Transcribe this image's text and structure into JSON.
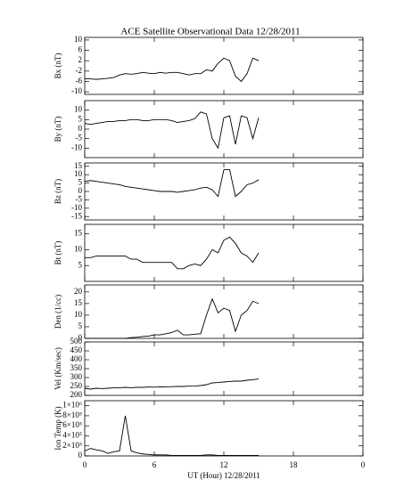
{
  "title": "ACE Satellite Observational Data   12/28/2011",
  "chart_data": [
    {
      "type": "line",
      "ylabel": "Bx (nT)",
      "xlim": [
        0,
        24
      ],
      "ylim": [
        -11,
        11
      ],
      "yticks": [
        -10,
        -6,
        -2,
        2,
        6,
        10
      ],
      "x": [
        0,
        0.5,
        1,
        1.5,
        2,
        2.5,
        3,
        3.5,
        4,
        4.5,
        5,
        5.5,
        6,
        6.5,
        7,
        7.5,
        8,
        8.5,
        9,
        9.5,
        10,
        10.5,
        11,
        11.5,
        12,
        12.5,
        13,
        13.5,
        14,
        14.5,
        15
      ],
      "series": [
        {
          "color": "#000000",
          "values": [
            -5,
            -5,
            -5.2,
            -5,
            -4.8,
            -4.5,
            -3.5,
            -3,
            -3.2,
            -3,
            -2.5,
            -2.8,
            -3,
            -2.5,
            -2.8,
            -2.5,
            -2.5,
            -3,
            -3.5,
            -3,
            -3,
            -1.5,
            -2,
            1,
            3,
            2,
            -4,
            -6,
            -3,
            3,
            2
          ]
        }
      ]
    },
    {
      "type": "line",
      "ylabel": "By (nT)",
      "xlim": [
        0,
        24
      ],
      "ylim": [
        -15,
        15
      ],
      "yticks": [
        -10,
        -5,
        0,
        5,
        10
      ],
      "x": [
        0,
        0.5,
        1,
        1.5,
        2,
        2.5,
        3,
        3.5,
        4,
        4.5,
        5,
        5.5,
        6,
        6.5,
        7,
        7.5,
        8,
        8.5,
        9,
        9.5,
        10,
        10.5,
        11,
        11.5,
        12,
        12.5,
        13,
        13.5,
        14,
        14.5,
        15
      ],
      "series": [
        {
          "color": "#000000",
          "values": [
            3,
            2.5,
            3,
            3.5,
            4,
            4,
            4.5,
            4.5,
            5,
            5,
            4.5,
            4.5,
            5,
            5,
            5,
            4.5,
            3.5,
            4,
            4.5,
            5.5,
            9,
            8,
            -5,
            -10,
            6,
            7,
            -8,
            7,
            6,
            -5,
            6
          ]
        }
      ]
    },
    {
      "type": "line",
      "ylabel": "Bz (nT)",
      "xlim": [
        0,
        24
      ],
      "ylim": [
        -17,
        17
      ],
      "yticks": [
        -15,
        -10,
        -5,
        0,
        5,
        10,
        15
      ],
      "x": [
        0,
        0.5,
        1,
        1.5,
        2,
        2.5,
        3,
        3.5,
        4,
        4.5,
        5,
        5.5,
        6,
        6.5,
        7,
        7.5,
        8,
        8.5,
        9,
        9.5,
        10,
        10.5,
        11,
        11.5,
        12,
        12.5,
        13,
        13.5,
        14,
        14.5,
        15
      ],
      "series": [
        {
          "color": "#000000",
          "values": [
            6,
            6.5,
            6,
            5.5,
            5,
            4.5,
            4,
            3,
            2.5,
            2,
            1.5,
            1,
            0.5,
            0,
            0,
            0,
            -0.5,
            0,
            0.5,
            1,
            2,
            2.5,
            1,
            -3,
            13,
            13,
            -3,
            0,
            4,
            5,
            7
          ]
        }
      ]
    },
    {
      "type": "line",
      "ylabel": "Bt (nT)",
      "xlim": [
        0,
        24
      ],
      "ylim": [
        0,
        18
      ],
      "yticks": [
        5,
        10,
        15
      ],
      "x": [
        0,
        0.5,
        1,
        1.5,
        2,
        2.5,
        3,
        3.5,
        4,
        4.5,
        5,
        5.5,
        6,
        6.5,
        7,
        7.5,
        8,
        8.5,
        9,
        9.5,
        10,
        10.5,
        11,
        11.5,
        12,
        12.5,
        13,
        13.5,
        14,
        14.5,
        15
      ],
      "series": [
        {
          "color": "#000000",
          "values": [
            7.5,
            7.5,
            8,
            8,
            8,
            8,
            8,
            8,
            7,
            7,
            6,
            6,
            6,
            6,
            6,
            6,
            4,
            4,
            5,
            5.5,
            5,
            7,
            10,
            9,
            13,
            14,
            12,
            9,
            8,
            6,
            9
          ]
        }
      ]
    },
    {
      "type": "line",
      "ylabel": "Den (1/cc)",
      "xlim": [
        0,
        24
      ],
      "ylim": [
        0,
        23
      ],
      "yticks": [
        0,
        5,
        10,
        15,
        20
      ],
      "x": [
        0,
        0.5,
        1,
        1.5,
        2,
        2.5,
        3,
        3.5,
        4,
        4.5,
        5,
        5.5,
        6,
        6.5,
        7,
        7.5,
        8,
        8.5,
        9,
        9.5,
        10,
        10.5,
        11,
        11.5,
        12,
        12.5,
        13,
        13.5,
        14,
        14.5,
        15
      ],
      "series": [
        {
          "color": "#000000",
          "values": [
            0,
            0,
            0,
            0,
            0,
            0,
            0,
            0,
            0.3,
            0.5,
            0.8,
            1,
            1.5,
            1.5,
            2,
            2.5,
            3.5,
            1.5,
            1.5,
            1.8,
            2,
            10,
            17,
            11,
            13,
            12,
            3,
            10,
            12,
            16,
            15
          ]
        }
      ]
    },
    {
      "type": "line",
      "ylabel": "Vel (Km/sec)",
      "xlim": [
        0,
        24
      ],
      "ylim": [
        200,
        500
      ],
      "yticks": [
        200,
        250,
        300,
        350,
        400,
        450,
        500
      ],
      "x": [
        0,
        0.5,
        1,
        1.5,
        2,
        2.5,
        3,
        3.5,
        4,
        4.5,
        5,
        5.5,
        6,
        6.5,
        7,
        7.5,
        8,
        8.5,
        9,
        9.5,
        10,
        10.5,
        11,
        11.5,
        12,
        12.5,
        13,
        13.5,
        14,
        14.5,
        15
      ],
      "series": [
        {
          "color": "#000000",
          "values": [
            240,
            235,
            240,
            238,
            240,
            242,
            242,
            245,
            243,
            245,
            245,
            247,
            246,
            248,
            247,
            249,
            250,
            250,
            252,
            253,
            255,
            260,
            270,
            272,
            275,
            278,
            280,
            280,
            285,
            288,
            292
          ]
        }
      ]
    },
    {
      "type": "line",
      "ylabel": "Ion Temp (K)",
      "xlabel": "UT (Hour)   12/28/2011",
      "xlim": [
        0,
        24
      ],
      "xticks": [
        0,
        6,
        12,
        18,
        {
          "value": 24,
          "label": "0"
        }
      ],
      "ylim": [
        0,
        1100000
      ],
      "yticks": [
        0,
        {
          "value": 200000,
          "label": "2×10⁵"
        },
        {
          "value": 400000,
          "label": "4×10⁵"
        },
        {
          "value": 600000,
          "label": "6×10⁵"
        },
        {
          "value": 800000,
          "label": "8×10⁵"
        },
        {
          "value": 1000000,
          "label": "1×10⁶"
        }
      ],
      "x": [
        0,
        0.5,
        1,
        1.5,
        2,
        2.5,
        3,
        3.5,
        4,
        4.5,
        5,
        5.5,
        6,
        6.5,
        7,
        7.5,
        8,
        8.5,
        9,
        9.5,
        10,
        10.5,
        11,
        11.5,
        12,
        12.5,
        13,
        13.5,
        14,
        14.5,
        15
      ],
      "series": [
        {
          "color": "#000000",
          "values": [
            100000,
            150000,
            120000,
            100000,
            50000,
            80000,
            100000,
            800000,
            100000,
            60000,
            40000,
            30000,
            20000,
            20000,
            20000,
            10000,
            10000,
            10000,
            10000,
            10000,
            10000,
            20000,
            20000,
            10000,
            10000,
            10000,
            10000,
            10000,
            10000,
            10000,
            10000
          ]
        }
      ]
    }
  ]
}
